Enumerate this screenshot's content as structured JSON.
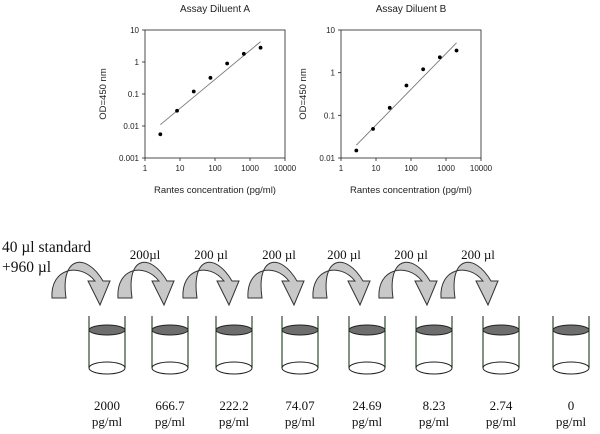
{
  "chart_data": [
    {
      "type": "scatter",
      "title": "Assay Diluent A",
      "xlabel": "Rantes concentration (pg/ml)",
      "ylabel": "OD=450 nm",
      "x_scale": "log",
      "y_scale": "log",
      "xlim": [
        1,
        10000
      ],
      "ylim": [
        0.001,
        10
      ],
      "x_ticks": [
        "1",
        "10",
        "100",
        "1000",
        "10000"
      ],
      "y_ticks": [
        "0.001",
        "0.01",
        "0.1",
        "1",
        "10"
      ],
      "x": [
        2.74,
        8.23,
        24.69,
        74.07,
        222.2,
        666.7,
        2000
      ],
      "y": [
        0.0055,
        0.03,
        0.12,
        0.32,
        0.9,
        1.8,
        2.8
      ],
      "fit_line": {
        "x": [
          2.74,
          2000
        ],
        "y": [
          0.011,
          4.3
        ]
      }
    },
    {
      "type": "scatter",
      "title": "Assay Diluent B",
      "xlabel": "Rantes concentration (pg/ml)",
      "ylabel": "OD=450 nm",
      "x_scale": "log",
      "y_scale": "log",
      "xlim": [
        1,
        10000
      ],
      "ylim": [
        0.01,
        10
      ],
      "x_ticks": [
        "1",
        "10",
        "100",
        "1000",
        "10000"
      ],
      "y_ticks": [
        "0.01",
        "0.1",
        "1",
        "10"
      ],
      "x": [
        2.74,
        8.23,
        24.69,
        74.07,
        222.2,
        666.7,
        2000
      ],
      "y": [
        0.015,
        0.048,
        0.15,
        0.5,
        1.2,
        2.3,
        3.3
      ],
      "fit_line": {
        "x": [
          2.74,
          2000
        ],
        "y": [
          0.02,
          5.0
        ]
      }
    }
  ],
  "dilution": {
    "initial_label_line1": "40 µl standard",
    "initial_label_line2": "+960 µl",
    "transfer_labels": [
      "200µl",
      "200 µl",
      "200 µl",
      "200 µl",
      "200 µl",
      "200 µl"
    ],
    "tubes": [
      {
        "value": "2000",
        "unit": "pg/ml"
      },
      {
        "value": "666.7",
        "unit": "pg/ml"
      },
      {
        "value": "222.2",
        "unit": "pg/ml"
      },
      {
        "value": "74.07",
        "unit": "pg/ml"
      },
      {
        "value": "24.69",
        "unit": "pg/ml"
      },
      {
        "value": "8.23",
        "unit": "pg/ml"
      },
      {
        "value": "2.74",
        "unit": "pg/ml"
      },
      {
        "value": "0",
        "unit": "pg/ml"
      }
    ],
    "colors": {
      "tube_outline": "#1a3d1a",
      "liquid": "#6e6e6e",
      "arrow_fill": "#c8c8c8",
      "arrow_stroke": "#333333"
    }
  }
}
